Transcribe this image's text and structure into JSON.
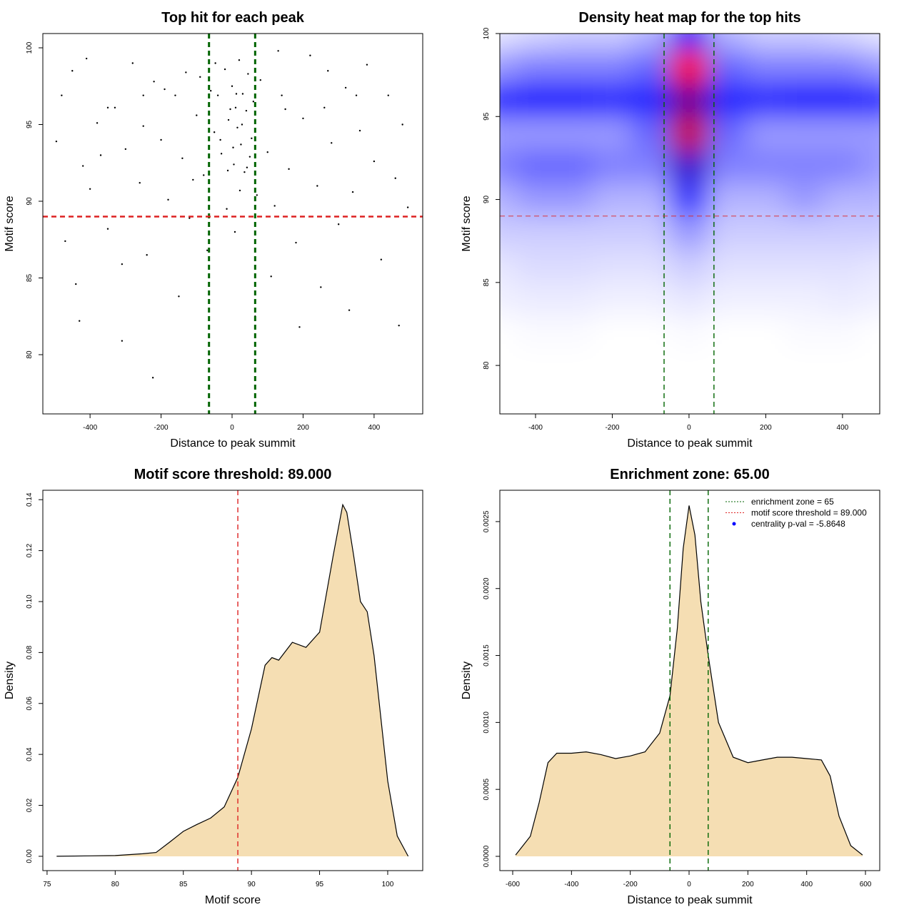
{
  "chart_data": [
    {
      "type": "scatter",
      "title": "Top hit for each peak",
      "x_label": "Distance to peak summit",
      "y_label": "Motif score",
      "x": [
        -480,
        -450,
        -420,
        -400,
        -380,
        -350,
        -330,
        -300,
        -280,
        -260,
        -240,
        -220,
        -200,
        -180,
        -160,
        -140,
        -120,
        -100,
        -90,
        -80,
        -60,
        -50,
        -40,
        -30,
        -20,
        -10,
        0,
        5,
        10,
        15,
        20,
        25,
        30,
        35,
        40,
        45,
        50,
        55,
        60,
        70,
        80,
        100,
        120,
        140,
        160,
        180,
        200,
        220,
        240,
        260,
        280,
        300,
        320,
        340,
        360,
        380,
        400,
        420,
        440,
        460,
        480,
        495,
        -495,
        -470,
        -440,
        -410,
        -370,
        -310,
        -250,
        -190,
        -150,
        -110,
        -70,
        8,
        22,
        -15,
        65,
        110,
        190,
        250,
        330,
        470,
        -310,
        -430,
        -223,
        -65,
        150,
        -350,
        350,
        -250,
        270,
        -130,
        130,
        -5,
        3,
        -12,
        12,
        28,
        -33,
        42,
        -47
      ],
      "values": [
        96.9,
        98.5,
        92.3,
        90.8,
        95.1,
        88.2,
        96.1,
        93.4,
        99.0,
        91.2,
        86.5,
        97.8,
        94.0,
        90.1,
        96.9,
        92.8,
        88.9,
        95.6,
        98.1,
        91.7,
        97.2,
        94.5,
        96.9,
        93.1,
        98.6,
        95.3,
        97.5,
        92.4,
        96.1,
        94.8,
        99.2,
        93.7,
        97.0,
        91.9,
        95.9,
        98.3,
        92.9,
        94.1,
        96.5,
        90.4,
        97.9,
        93.2,
        89.7,
        96.9,
        92.1,
        87.3,
        95.4,
        99.5,
        91.0,
        96.1,
        93.8,
        88.5,
        97.4,
        90.6,
        94.6,
        98.9,
        92.6,
        86.2,
        96.9,
        91.5,
        95.0,
        89.6,
        93.9,
        87.4,
        84.6,
        99.3,
        93.0,
        85.9,
        94.9,
        97.3,
        83.8,
        91.4,
        86.8,
        88.0,
        90.7,
        89.5,
        82.5,
        85.1,
        81.8,
        84.4,
        82.9,
        81.9,
        80.9,
        82.2,
        78.5,
        77.3,
        96.0,
        96.1,
        96.9,
        96.9,
        98.5,
        98.4,
        99.8,
        96.0,
        93.5,
        92.0,
        97.0,
        95.0,
        94.0,
        92.2,
        99.0
      ],
      "color": "#000000",
      "xlim": [
        -533,
        537
      ],
      "ylim": [
        76.14,
        100.93
      ],
      "xticks": [
        -400,
        -200,
        0,
        200,
        400
      ],
      "yticks": [
        80,
        85,
        90,
        95,
        100
      ],
      "vlines": [
        -65,
        65
      ],
      "vline_color": "#006400",
      "hline": 89,
      "hline_color": "#dd2222"
    },
    {
      "type": "heatmap",
      "title": "Density heat map for the top hits",
      "x_label": "Distance to peak summit",
      "y_label": "Motif score",
      "x": [
        -500,
        -400,
        -300,
        -200,
        -100,
        0,
        100,
        200,
        300,
        400,
        500
      ],
      "y": [
        100,
        98,
        96,
        94,
        92,
        90,
        88,
        86,
        84,
        82,
        80,
        78
      ],
      "z": [
        [
          0.05,
          0.08,
          0.1,
          0.1,
          0.15,
          0.45,
          0.15,
          0.1,
          0.1,
          0.08,
          0.05
        ],
        [
          0.2,
          0.25,
          0.25,
          0.25,
          0.3,
          1.0,
          0.3,
          0.25,
          0.25,
          0.25,
          0.2
        ],
        [
          0.45,
          0.5,
          0.5,
          0.45,
          0.45,
          0.7,
          0.45,
          0.45,
          0.5,
          0.5,
          0.45
        ],
        [
          0.2,
          0.2,
          0.2,
          0.2,
          0.3,
          0.9,
          0.3,
          0.2,
          0.2,
          0.2,
          0.2
        ],
        [
          0.25,
          0.3,
          0.3,
          0.25,
          0.25,
          0.6,
          0.25,
          0.25,
          0.25,
          0.25,
          0.2
        ],
        [
          0.15,
          0.2,
          0.2,
          0.15,
          0.15,
          0.4,
          0.15,
          0.15,
          0.2,
          0.15,
          0.15
        ],
        [
          0.1,
          0.1,
          0.1,
          0.1,
          0.1,
          0.2,
          0.1,
          0.1,
          0.1,
          0.1,
          0.1
        ],
        [
          0.05,
          0.07,
          0.07,
          0.06,
          0.06,
          0.1,
          0.06,
          0.06,
          0.06,
          0.06,
          0.05
        ],
        [
          0.03,
          0.04,
          0.04,
          0.03,
          0.03,
          0.05,
          0.03,
          0.03,
          0.03,
          0.04,
          0.03
        ],
        [
          0,
          0.01,
          0.01,
          0,
          0,
          0.01,
          0,
          0,
          0.01,
          0.01,
          0
        ],
        [
          0,
          0,
          0,
          0,
          0,
          0,
          0,
          0,
          0,
          0,
          0
        ],
        [
          0,
          0,
          0,
          0,
          0,
          0,
          0,
          0,
          0,
          0,
          0
        ]
      ],
      "colors": [
        "#ffffff",
        "#0000ff",
        "#ff0000"
      ],
      "xlim": [
        -493,
        497
      ],
      "ylim": [
        77.08,
        100
      ],
      "xticks": [
        -400,
        -200,
        0,
        200,
        400
      ],
      "yticks": [
        80,
        85,
        90,
        95,
        100
      ],
      "vlines": [
        -65,
        65
      ],
      "vline_color": "#006400",
      "hline": 89,
      "hline_color": "#dd2222"
    },
    {
      "type": "area",
      "title": "Motif score threshold: 89.000",
      "x_label": "Motif score",
      "y_label": "Density",
      "x": [
        75.7,
        80,
        82,
        83,
        84,
        85,
        86,
        87,
        88,
        89,
        90,
        91,
        91.5,
        92,
        93,
        94,
        95,
        96,
        96.7,
        97,
        97.5,
        98,
        98.5,
        99,
        100,
        100.7,
        101.5
      ],
      "values": [
        0,
        0.0003,
        0.001,
        0.0015,
        0.0056,
        0.0098,
        0.0125,
        0.015,
        0.0194,
        0.031,
        0.05,
        0.075,
        0.078,
        0.077,
        0.084,
        0.082,
        0.088,
        0.118,
        0.138,
        0.135,
        0.118,
        0.1,
        0.096,
        0.0787,
        0.0295,
        0.008,
        0
      ],
      "color": "#000000",
      "fill": "#f5deb3",
      "xlim": [
        74.69,
        102.57
      ],
      "ylim": [
        -0.00562,
        0.1437
      ],
      "xticks": [
        75,
        80,
        85,
        90,
        95,
        100
      ],
      "yticks": [
        {
          "value": 0,
          "label": "0.00"
        },
        {
          "value": 0.02,
          "label": "0.02"
        },
        {
          "value": 0.04,
          "label": "0.04"
        },
        {
          "value": 0.06,
          "label": "0.06"
        },
        {
          "value": 0.08,
          "label": "0.08"
        },
        {
          "value": 0.1,
          "label": "0.10"
        },
        {
          "value": 0.12,
          "label": "0.12"
        },
        {
          "value": 0.14,
          "label": "0.14"
        }
      ],
      "vlines": [
        89
      ],
      "vline_color": "#dd2222"
    },
    {
      "type": "area",
      "title": "Enrichment zone: 65.00",
      "x_label": "Distance to peak summit",
      "y_label": "Density",
      "x": [
        -590,
        -540,
        -510,
        -480,
        -450,
        -400,
        -350,
        -300,
        -250,
        -200,
        -150,
        -100,
        -65,
        -40,
        -20,
        0,
        20,
        40,
        65,
        100,
        150,
        200,
        250,
        300,
        350,
        400,
        450,
        480,
        510,
        550,
        590
      ],
      "values": [
        1e-05,
        0.00015,
        0.0004,
        0.0007,
        0.00077,
        0.00077,
        0.00078,
        0.00076,
        0.00073,
        0.00075,
        0.00078,
        0.00092,
        0.0012,
        0.0017,
        0.0023,
        0.00262,
        0.0024,
        0.0019,
        0.0015,
        0.001,
        0.00074,
        0.0007,
        0.00072,
        0.00074,
        0.00074,
        0.00073,
        0.00072,
        0.0006,
        0.0003,
        8e-05,
        1e-05
      ],
      "color": "#000000",
      "fill": "#f5deb3",
      "xlim": [
        -643.7,
        648.5
      ],
      "ylim": [
        -0.0001066,
        0.002734
      ],
      "xticks": [
        -600,
        -400,
        -200,
        0,
        200,
        400,
        600
      ],
      "yticks": [
        {
          "value": 0,
          "label": "0.0000"
        },
        {
          "value": 0.0005,
          "label": "0.0005"
        },
        {
          "value": 0.001,
          "label": "0.0010"
        },
        {
          "value": 0.0015,
          "label": "0.0015"
        },
        {
          "value": 0.002,
          "label": "0.0020"
        },
        {
          "value": 0.0025,
          "label": "0.0025"
        }
      ],
      "vlines": [
        -65,
        65
      ],
      "vline_color": "#006400",
      "legend_position": "topright",
      "legend": [
        {
          "name": "enrichment zone = 65",
          "color": "#006400",
          "style": "dotted"
        },
        {
          "name": "motif score threshold = 89.000",
          "color": "#dd2222",
          "style": "dotted"
        },
        {
          "name": "centrality p-val = -5.8648",
          "color": "#0000ff",
          "style": "point"
        }
      ]
    }
  ]
}
